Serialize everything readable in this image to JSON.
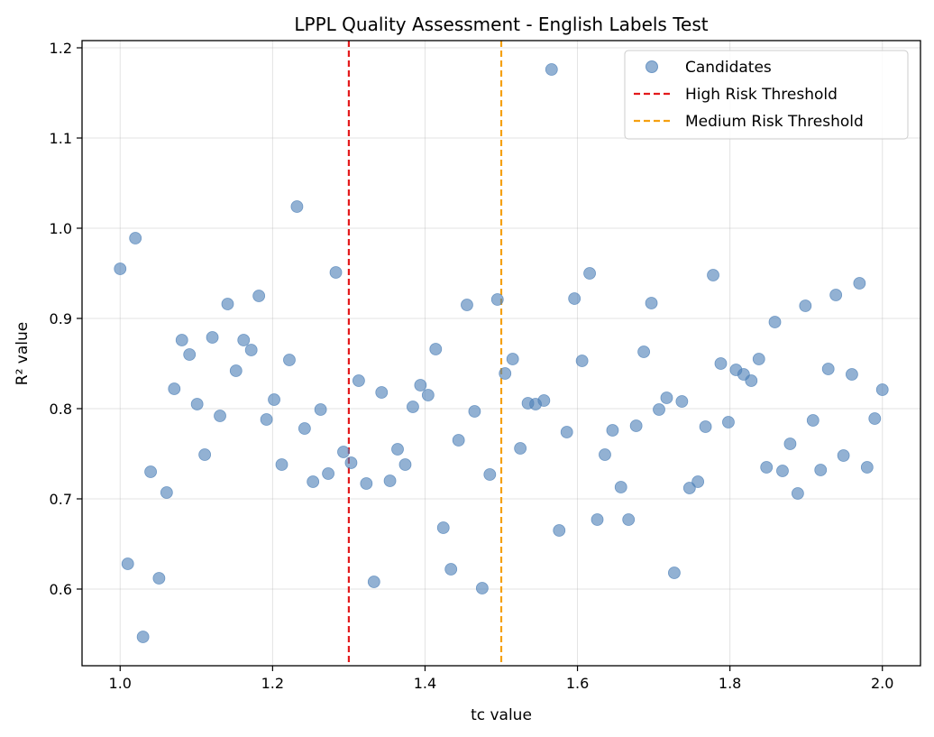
{
  "chart_data": {
    "type": "scatter",
    "title": "LPPL Quality Assessment - English Labels Test",
    "xlabel": "tc value",
    "ylabel": "R² value",
    "xlim": [
      0.95,
      2.05
    ],
    "ylim": [
      0.515,
      1.208
    ],
    "xticks": [
      1.0,
      1.2,
      1.4,
      1.6,
      1.8,
      2.0
    ],
    "xtick_labels": [
      "1.0",
      "1.2",
      "1.4",
      "1.6",
      "1.8",
      "2.0"
    ],
    "yticks": [
      0.6,
      0.7,
      0.8,
      0.9,
      1.0,
      1.1,
      1.2
    ],
    "ytick_labels": [
      "0.6",
      "0.7",
      "0.8",
      "0.9",
      "1.0",
      "1.1",
      "1.2"
    ],
    "grid": true,
    "legend_position": "top-right",
    "series": [
      {
        "name": "Candidates",
        "kind": "scatter",
        "color": "#4f81b8",
        "x": [
          1.0,
          1.01,
          1.02,
          1.03,
          1.04,
          1.051,
          1.061,
          1.071,
          1.081,
          1.091,
          1.101,
          1.111,
          1.121,
          1.131,
          1.141,
          1.152,
          1.162,
          1.172,
          1.182,
          1.192,
          1.202,
          1.212,
          1.222,
          1.232,
          1.242,
          1.253,
          1.263,
          1.273,
          1.283,
          1.293,
          1.303,
          1.313,
          1.323,
          1.333,
          1.343,
          1.354,
          1.364,
          1.374,
          1.384,
          1.394,
          1.404,
          1.414,
          1.424,
          1.434,
          1.444,
          1.455,
          1.465,
          1.475,
          1.485,
          1.495,
          1.505,
          1.515,
          1.525,
          1.535,
          1.545,
          1.556,
          1.566,
          1.576,
          1.586,
          1.596,
          1.606,
          1.616,
          1.626,
          1.636,
          1.646,
          1.657,
          1.667,
          1.677,
          1.687,
          1.697,
          1.707,
          1.717,
          1.727,
          1.737,
          1.747,
          1.758,
          1.768,
          1.778,
          1.788,
          1.798,
          1.808,
          1.818,
          1.828,
          1.838,
          1.848,
          1.859,
          1.869,
          1.879,
          1.889,
          1.899,
          1.909,
          1.919,
          1.929,
          1.939,
          1.949,
          1.96,
          1.97,
          1.98,
          1.99,
          2.0
        ],
        "y": [
          0.955,
          0.628,
          0.989,
          0.547,
          0.73,
          0.612,
          0.707,
          0.822,
          0.876,
          0.86,
          0.805,
          0.749,
          0.879,
          0.792,
          0.916,
          0.842,
          0.876,
          0.865,
          0.925,
          0.788,
          0.81,
          0.738,
          0.854,
          1.024,
          0.778,
          0.719,
          0.799,
          0.728,
          0.951,
          0.752,
          0.74,
          0.831,
          0.717,
          0.608,
          0.818,
          0.72,
          0.755,
          0.738,
          0.802,
          0.826,
          0.815,
          0.866,
          0.668,
          0.622,
          0.765,
          0.915,
          0.797,
          0.601,
          0.727,
          0.921,
          0.839,
          0.855,
          0.756,
          0.806,
          0.805,
          0.809,
          1.176,
          0.665,
          0.774,
          0.922,
          0.853,
          0.95,
          0.677,
          0.749,
          0.776,
          0.713,
          0.677,
          0.781,
          0.863,
          0.917,
          0.799,
          0.812,
          0.618,
          0.808,
          0.712,
          0.719,
          0.78,
          0.948,
          0.85,
          0.785,
          0.843,
          0.838,
          0.831,
          0.855,
          0.735,
          0.896,
          0.731,
          0.761,
          0.706,
          0.914,
          0.787,
          0.732,
          0.844,
          0.926,
          0.748,
          0.838,
          0.939,
          0.735,
          0.789,
          0.821
        ]
      },
      {
        "name": "High Risk Threshold",
        "kind": "vline",
        "x": 1.3,
        "color": "#e31a1c",
        "linestyle": "dashed"
      },
      {
        "name": "Medium Risk Threshold",
        "kind": "vline",
        "x": 1.5,
        "color": "#f5a011",
        "linestyle": "dashed"
      }
    ]
  }
}
